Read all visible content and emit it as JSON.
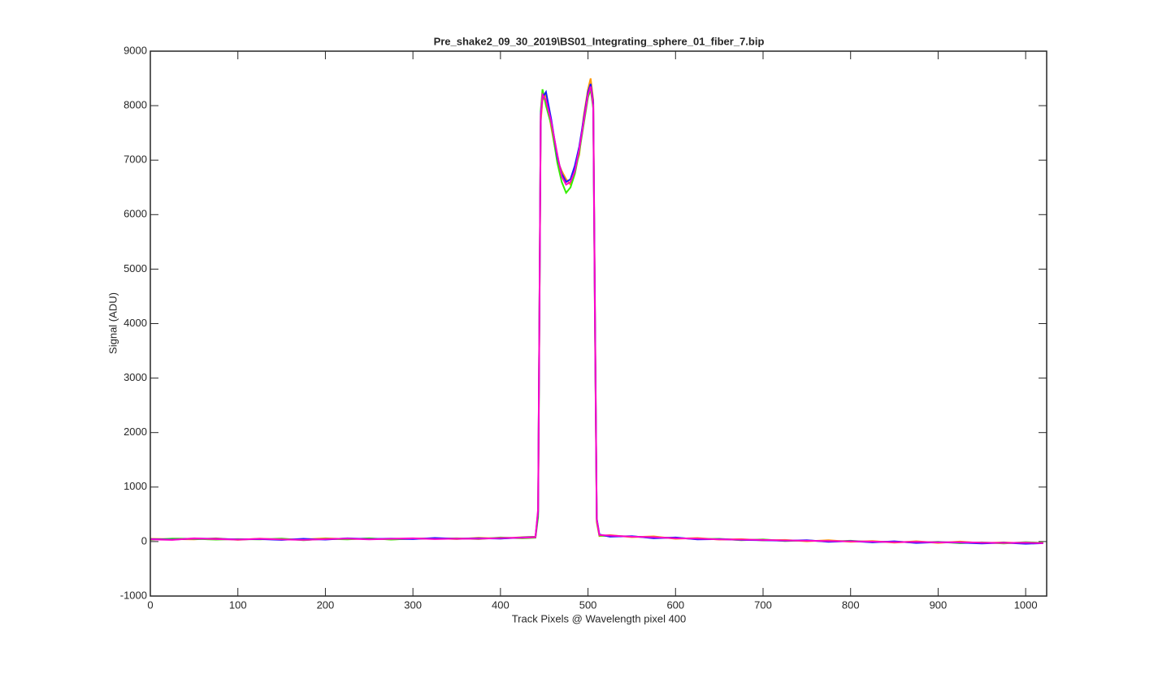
{
  "chart_data": {
    "type": "line",
    "title": "Pre_shake2_09_30_2019\\BS01_Integrating_sphere_01_fiber_7.bip",
    "x_label": "Track Pixels @ Wavelength pixel 400",
    "y_label": "Signal (ADU)",
    "x": [
      0,
      25,
      50,
      75,
      100,
      125,
      150,
      175,
      200,
      225,
      250,
      275,
      300,
      325,
      350,
      375,
      400,
      425,
      440,
      443,
      446,
      448,
      452,
      458,
      465,
      470,
      475,
      480,
      485,
      490,
      495,
      500,
      503,
      506,
      508,
      510,
      513,
      525,
      550,
      575,
      600,
      625,
      650,
      675,
      700,
      725,
      750,
      775,
      800,
      825,
      850,
      875,
      900,
      925,
      950,
      975,
      1000,
      1020
    ],
    "series": [
      {
        "name": "Orange",
        "color": "#ff9900",
        "values": [
          50,
          45,
          40,
          60,
          30,
          55,
          35,
          40,
          60,
          45,
          55,
          40,
          50,
          60,
          45,
          70,
          55,
          80,
          90,
          500,
          7700,
          8100,
          8200,
          7600,
          7000,
          6800,
          6650,
          6550,
          6850,
          7100,
          7800,
          8300,
          8500,
          8100,
          4200,
          350,
          100,
          120,
          80,
          95,
          50,
          65,
          35,
          45,
          20,
          30,
          5,
          25,
          -5,
          10,
          -20,
          5,
          -25,
          0,
          -30,
          -15,
          -35,
          -20
        ]
      },
      {
        "name": "Green",
        "color": "#33ee00",
        "values": [
          30,
          55,
          50,
          35,
          45,
          40,
          55,
          25,
          50,
          40,
          60,
          35,
          55,
          50,
          60,
          45,
          75,
          60,
          70,
          450,
          7900,
          8300,
          8000,
          7650,
          6950,
          6600,
          6400,
          6500,
          6750,
          7150,
          7650,
          8150,
          8300,
          7950,
          3900,
          380,
          110,
          100,
          95,
          70,
          70,
          45,
          50,
          25,
          40,
          10,
          20,
          0,
          15,
          -10,
          0,
          -20,
          -5,
          -30,
          -15,
          -35,
          -10,
          -25
        ]
      },
      {
        "name": "Blue",
        "color": "#1a1aff",
        "values": [
          45,
          35,
          55,
          50,
          40,
          45,
          30,
          50,
          35,
          60,
          45,
          55,
          45,
          65,
          50,
          60,
          55,
          75,
          85,
          550,
          7850,
          8150,
          8250,
          7750,
          7050,
          6750,
          6600,
          6650,
          6900,
          7250,
          7750,
          8250,
          8400,
          8050,
          4100,
          420,
          130,
          90,
          100,
          60,
          75,
          40,
          45,
          30,
          25,
          15,
          25,
          -5,
          10,
          -15,
          5,
          -25,
          -10,
          -20,
          -35,
          -20,
          -40,
          -30
        ]
      },
      {
        "name": "Magenta",
        "color": "#ff00cc",
        "values": [
          40,
          30,
          60,
          45,
          35,
          50,
          40,
          30,
          45,
          55,
          40,
          50,
          60,
          45,
          55,
          50,
          65,
          70,
          80,
          600,
          7800,
          8200,
          8100,
          7700,
          7100,
          6700,
          6550,
          6600,
          6800,
          7200,
          7700,
          8200,
          8350,
          8000,
          4000,
          400,
          120,
          110,
          90,
          80,
          60,
          55,
          40,
          35,
          30,
          20,
          15,
          10,
          5,
          0,
          -10,
          -5,
          -15,
          -10,
          -20,
          -25,
          -20,
          -30
        ]
      }
    ],
    "xlim": [
      0,
      1024
    ],
    "ylim": [
      -1000,
      9000
    ],
    "xticks": [
      0,
      100,
      200,
      300,
      400,
      500,
      600,
      700,
      800,
      900,
      1000
    ],
    "yticks": [
      -1000,
      0,
      1000,
      2000,
      3000,
      4000,
      5000,
      6000,
      7000,
      8000,
      9000
    ],
    "grid": false
  }
}
